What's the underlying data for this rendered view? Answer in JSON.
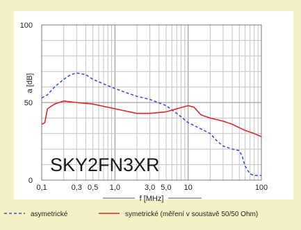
{
  "chart_data": {
    "type": "line",
    "title": "",
    "xlabel": "f [MHz]",
    "ylabel": "a [dB]",
    "xscale": "log",
    "xlim": [
      0.1,
      100
    ],
    "ylim": [
      0,
      100
    ],
    "x_ticks": [
      {
        "value": 0.1,
        "label": "0,1"
      },
      {
        "value": 0.3,
        "label": "0,3"
      },
      {
        "value": 0.5,
        "label": "0,5"
      },
      {
        "value": 1,
        "label": "1,0"
      },
      {
        "value": 3,
        "label": "3,0"
      },
      {
        "value": 5,
        "label": "5,0"
      },
      {
        "value": 10,
        "label": "10"
      },
      {
        "value": 100,
        "label": "100"
      }
    ],
    "y_ticks": [
      {
        "value": 0,
        "label": "0"
      },
      {
        "value": 50,
        "label": "50"
      },
      {
        "value": 100,
        "label": "100"
      }
    ],
    "grid": true,
    "annotation": "SKY2FN3XR",
    "legend_position": "bottom",
    "series": [
      {
        "name": "asymetrické",
        "color": "#3b4fd8",
        "dash": "dashed",
        "points": [
          [
            0.1,
            53
          ],
          [
            0.12,
            55
          ],
          [
            0.15,
            60
          ],
          [
            0.2,
            65
          ],
          [
            0.25,
            68
          ],
          [
            0.3,
            69
          ],
          [
            0.4,
            68
          ],
          [
            0.5,
            65
          ],
          [
            0.7,
            62
          ],
          [
            1,
            59
          ],
          [
            1.5,
            56
          ],
          [
            2,
            54
          ],
          [
            3,
            52
          ],
          [
            5,
            48
          ],
          [
            7,
            43
          ],
          [
            10,
            37
          ],
          [
            15,
            33
          ],
          [
            20,
            30
          ],
          [
            25,
            25
          ],
          [
            30,
            22
          ],
          [
            40,
            20
          ],
          [
            50,
            19
          ],
          [
            55,
            15
          ],
          [
            60,
            9
          ],
          [
            70,
            4
          ],
          [
            80,
            3
          ],
          [
            100,
            3
          ]
        ]
      },
      {
        "name": "symetrické (měření v soustavě 50/50 Ohm)",
        "color": "#e0262b",
        "dash": "solid",
        "points": [
          [
            0.1,
            36
          ],
          [
            0.11,
            37
          ],
          [
            0.12,
            46
          ],
          [
            0.15,
            49
          ],
          [
            0.2,
            51
          ],
          [
            0.3,
            50
          ],
          [
            0.5,
            49
          ],
          [
            1,
            46
          ],
          [
            2,
            43
          ],
          [
            3,
            43
          ],
          [
            5,
            44
          ],
          [
            7,
            46
          ],
          [
            10,
            48
          ],
          [
            12,
            47
          ],
          [
            15,
            42
          ],
          [
            20,
            40
          ],
          [
            30,
            38
          ],
          [
            40,
            36
          ],
          [
            60,
            32
          ],
          [
            80,
            30
          ],
          [
            100,
            28
          ]
        ]
      }
    ]
  }
}
